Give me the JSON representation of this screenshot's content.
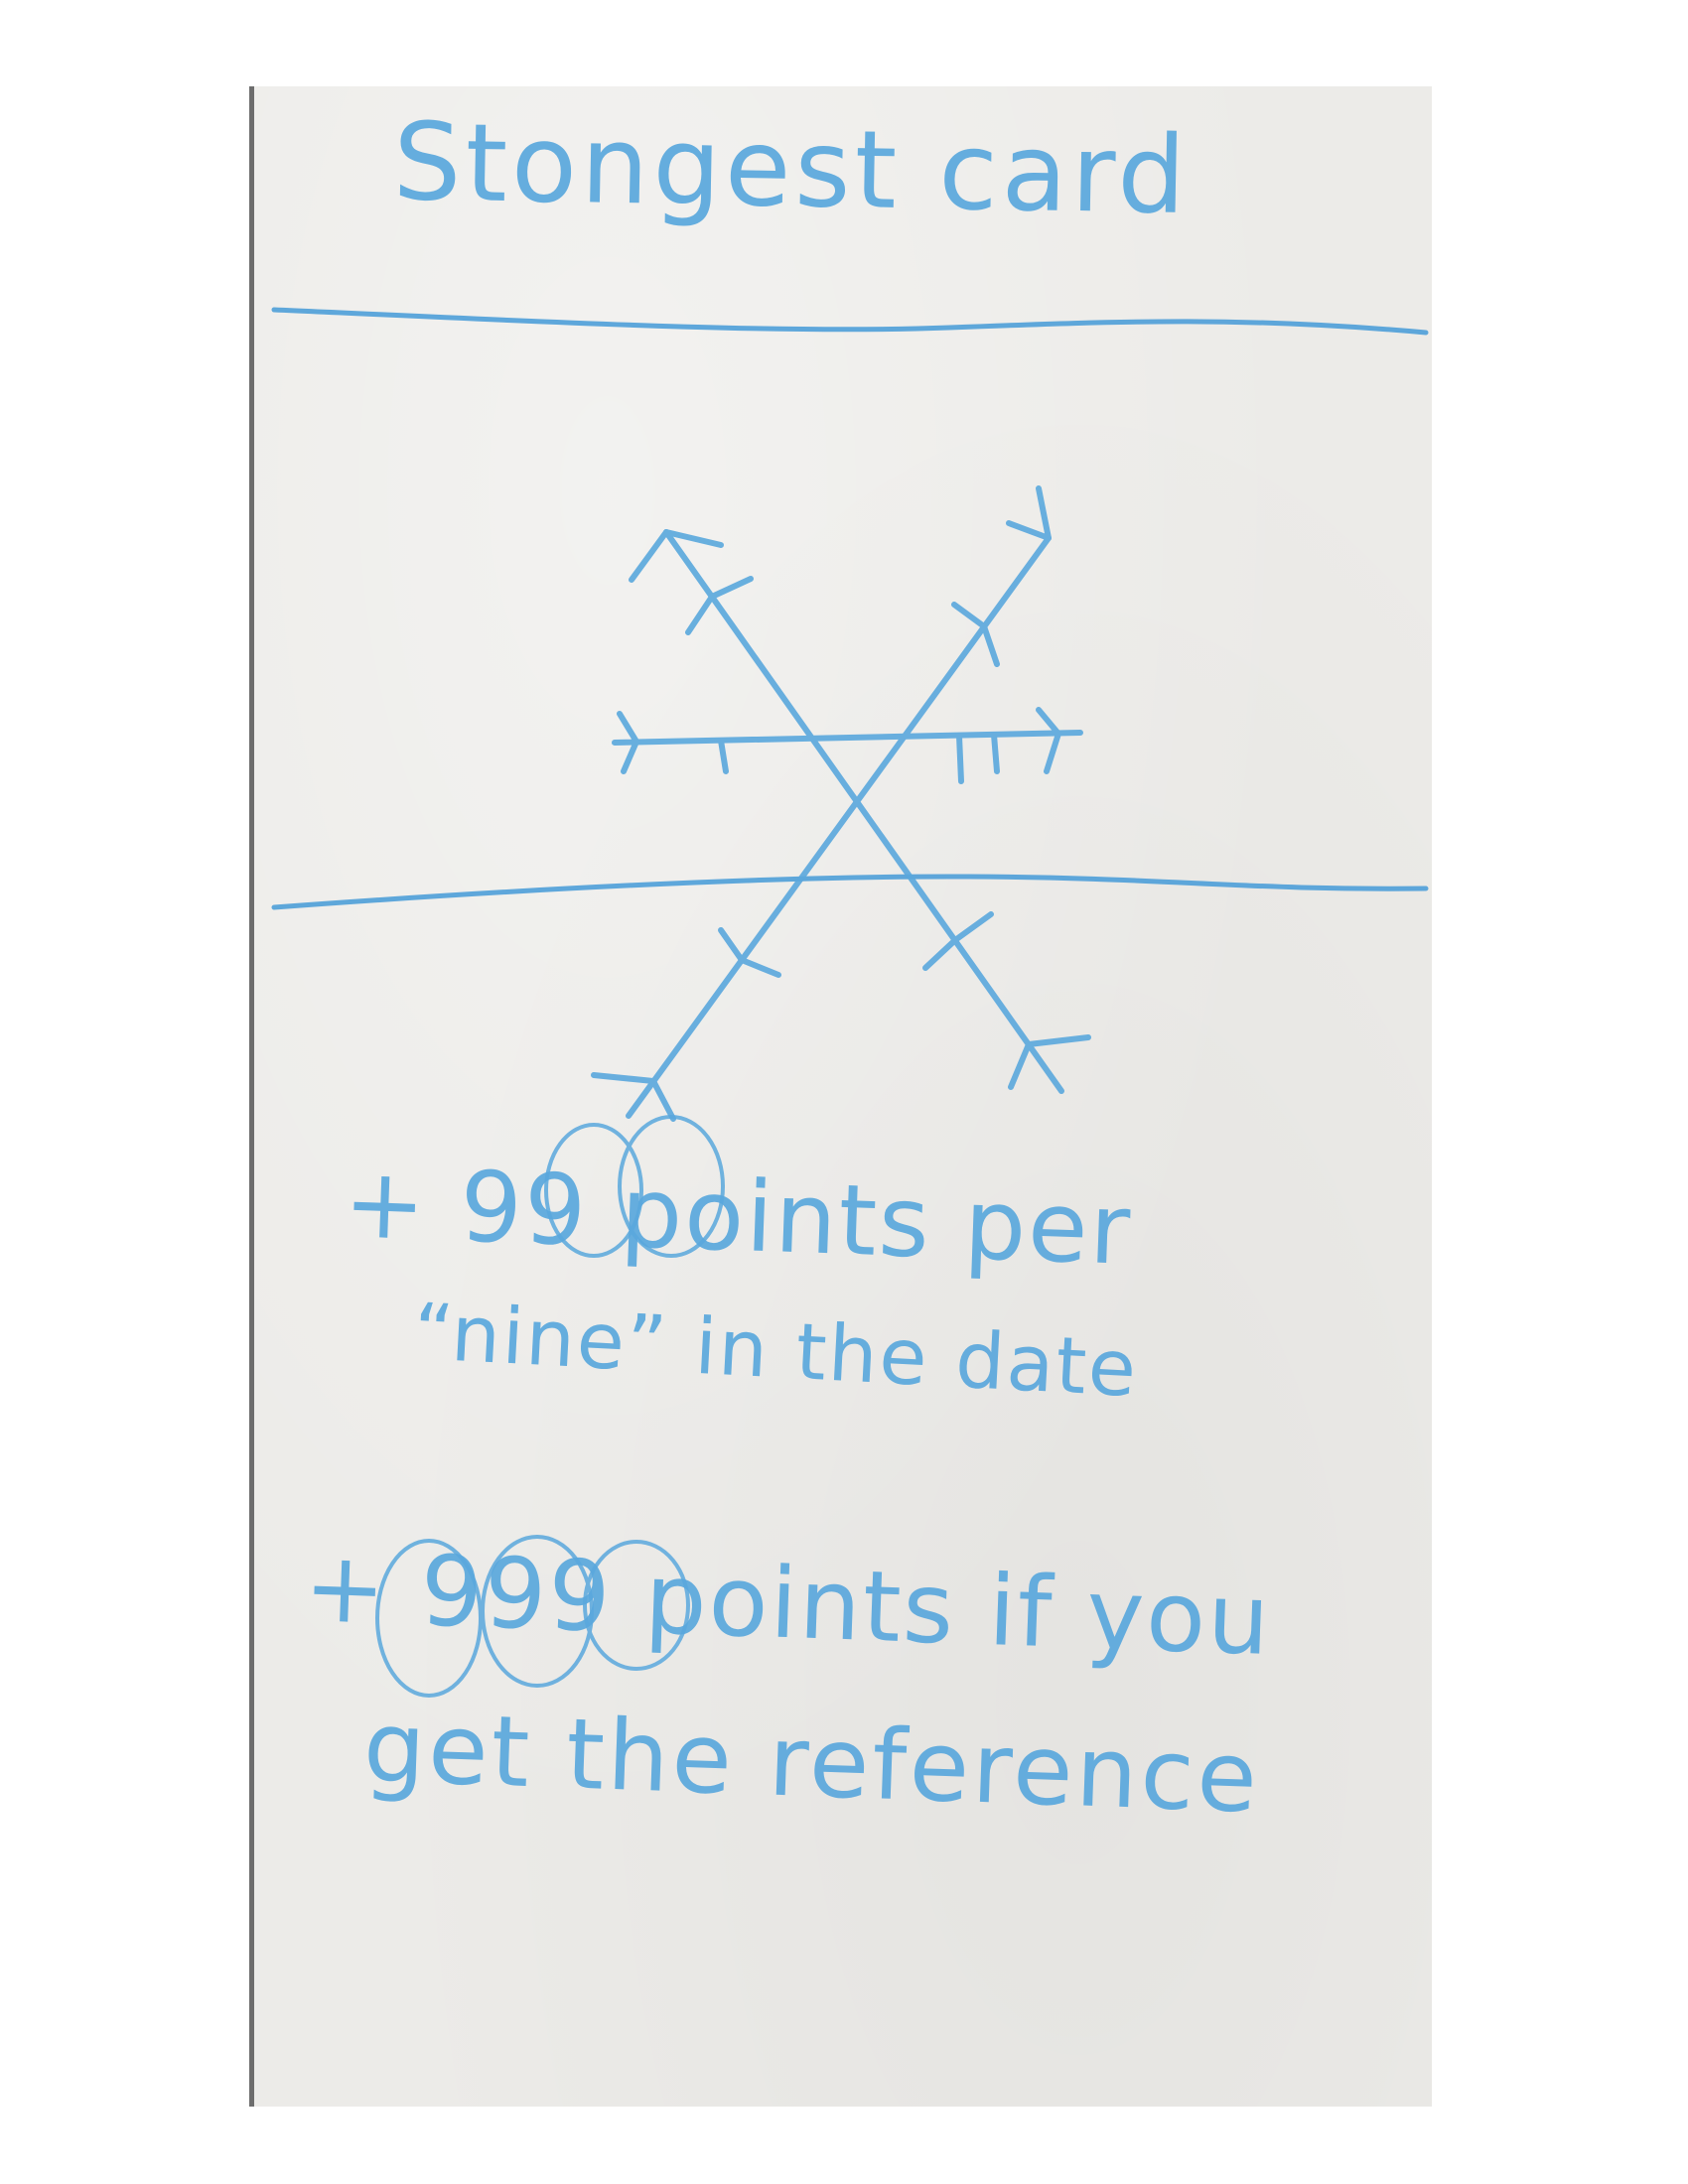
{
  "card": {
    "title": "Stongest card",
    "rules": [
      "+ 99 points per",
      "“nine” in the date",
      "+ 999 points if you",
      "get the reference"
    ]
  },
  "icons": {
    "illustration": "snowflake-icon"
  },
  "colors": {
    "ink": "#5aa8dd",
    "paper": "#ecebe8"
  }
}
